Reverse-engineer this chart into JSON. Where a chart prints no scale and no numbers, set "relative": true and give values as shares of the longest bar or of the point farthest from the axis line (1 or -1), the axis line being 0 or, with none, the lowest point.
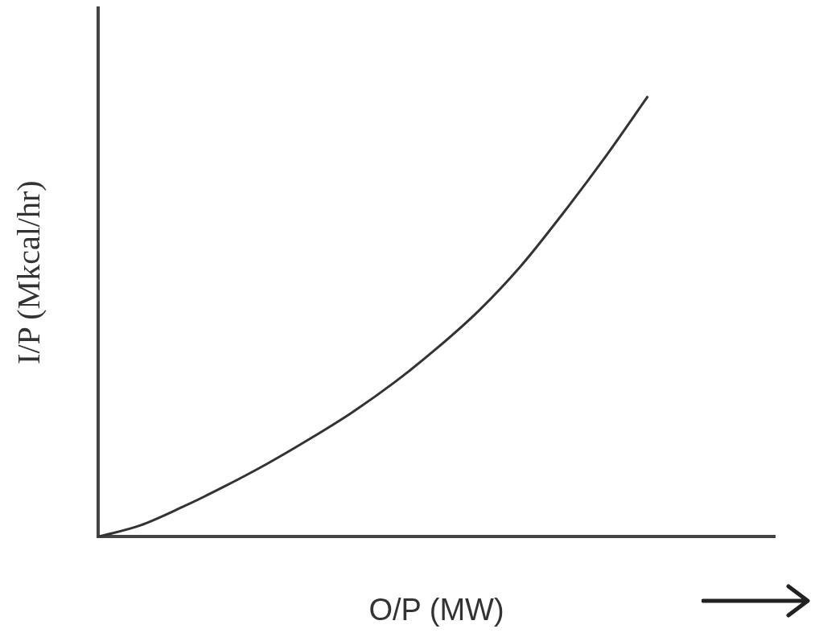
{
  "chart_data": {
    "type": "line",
    "relative": true,
    "xlabel": "O/P (MW)",
    "ylabel": "I/P (Mkcal/hr)",
    "categories": [
      null,
      null,
      null,
      null,
      null,
      null,
      null,
      null,
      null,
      null,
      null,
      null,
      null,
      null,
      null,
      null,
      null
    ],
    "series": [
      {
        "color": "#333333",
        "values": [
          0,
          0.026,
          0.068,
          0.115,
          0.166,
          0.222,
          0.282,
          0.35,
          0.427,
          0.513,
          0.615,
          0.735,
          0.863,
          1,
          null,
          null,
          null
        ]
      }
    ],
    "marker": "none",
    "grid": false,
    "legend": false,
    "tick_labels": false
  }
}
